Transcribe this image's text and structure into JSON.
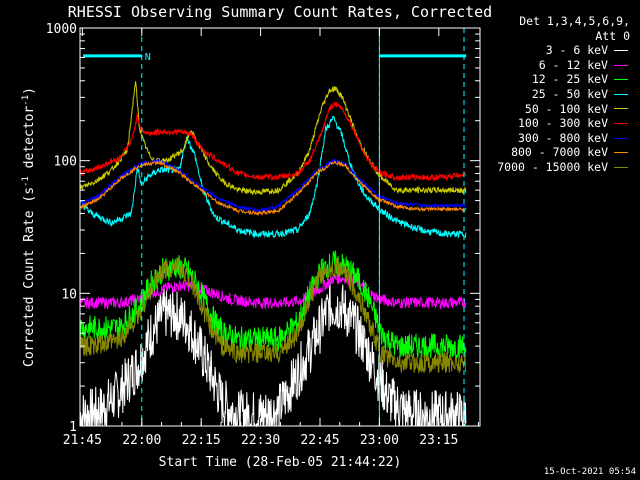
{
  "chart_data": {
    "type": "line",
    "title": "RHESSI Observing Summary Count Rates, Corrected",
    "xlabel": "Start Time (28-Feb-05 21:44:22)",
    "ylabel": "Corrected Count Rate (s⁻¹ detector⁻¹)",
    "ylabel_main": "Corrected Count Rate (s",
    "ylabel_sup1": "-1",
    "ylabel_mid": " detector",
    "ylabel_sup2": "-1",
    "ylabel_end": ")",
    "y_scale": "log",
    "ylim": [
      1,
      1000
    ],
    "xlim_minutes": [
      0,
      101
    ],
    "x_ticks": [
      {
        "label": "21:45",
        "min": 0.6
      },
      {
        "label": "22:00",
        "min": 15.6
      },
      {
        "label": "22:15",
        "min": 30.6
      },
      {
        "label": "22:30",
        "min": 45.6
      },
      {
        "label": "22:45",
        "min": 60.6
      },
      {
        "label": "23:00",
        "min": 75.6
      },
      {
        "label": "23:15",
        "min": 90.6
      }
    ],
    "y_ticks": [
      {
        "label": "1000",
        "v": 1000
      },
      {
        "label": "100",
        "v": 100
      },
      {
        "label": "10",
        "v": 10
      },
      {
        "label": "1",
        "v": 1
      }
    ],
    "legend_header": [
      "Det 1,3,4,5,6,9,",
      "Att 0"
    ],
    "series": [
      {
        "name": "3 - 6 keV",
        "color": "#ffffff",
        "x": [
          0,
          5,
          10,
          15,
          18,
          21,
          24,
          27,
          30,
          33,
          36,
          40,
          45,
          50,
          55,
          60,
          63,
          66,
          69,
          72,
          75,
          78,
          82,
          86,
          90,
          95,
          97.5
        ],
        "y": [
          1.2,
          1.3,
          1.8,
          3,
          5,
          7,
          7,
          6,
          4,
          2.5,
          1.5,
          1.2,
          1.2,
          1.3,
          2.5,
          5,
          8,
          8,
          6,
          4,
          2.5,
          1.6,
          1.3,
          1.2,
          1.2,
          1.2,
          1.2
        ]
      },
      {
        "name": "6 - 12 keV",
        "color": "#ff00ff",
        "x": [
          0,
          5,
          10,
          15,
          18,
          22,
          26,
          30,
          34,
          38,
          45,
          52,
          57,
          61,
          64,
          67,
          70,
          73,
          76,
          80,
          86,
          92,
          97.5
        ],
        "y": [
          8.5,
          8.5,
          8.5,
          9,
          10,
          11,
          11.5,
          11,
          10,
          9,
          8.5,
          8.5,
          9,
          11,
          13,
          13,
          12,
          10,
          9,
          8.5,
          8.5,
          8.5,
          8.5
        ]
      },
      {
        "name": "12 - 25 keV",
        "color": "#00ff00",
        "x": [
          0,
          5,
          10,
          15,
          18,
          21,
          24,
          27,
          30,
          33,
          36,
          40,
          45,
          50,
          55,
          58,
          61,
          64,
          67,
          70,
          73,
          76,
          80,
          86,
          92,
          97.5
        ],
        "y": [
          5.5,
          5.5,
          5.5,
          8,
          12,
          15,
          16,
          15,
          11,
          7,
          5,
          4.5,
          4.5,
          4.5,
          6,
          10,
          15,
          17,
          16,
          13,
          9,
          5,
          4,
          4,
          4,
          4
        ]
      },
      {
        "name": "25 - 50 keV",
        "color": "#00ffff",
        "x": [
          0,
          3,
          8,
          13,
          14.5,
          15.5,
          17,
          20,
          25,
          27,
          29,
          31,
          34,
          40,
          45,
          50,
          55,
          58,
          60,
          62,
          64,
          66,
          68,
          70,
          72,
          74,
          76,
          80,
          86,
          92,
          97.5
        ],
        "y": [
          48,
          40,
          34,
          40,
          90,
          65,
          75,
          85,
          85,
          150,
          110,
          60,
          38,
          30,
          28,
          28,
          30,
          40,
          70,
          170,
          210,
          160,
          100,
          70,
          55,
          48,
          42,
          35,
          30,
          28,
          28
        ]
      },
      {
        "name": "50 - 100 keV",
        "color": "#cccc00",
        "x": [
          0,
          4,
          8,
          12,
          14,
          15,
          16,
          17.5,
          19,
          22,
          26,
          28,
          30,
          33,
          36,
          40,
          45,
          50,
          55,
          58,
          61,
          63,
          64.5,
          66,
          68,
          70,
          73,
          76,
          80,
          86,
          92,
          97.5
        ],
        "y": [
          62,
          70,
          85,
          120,
          400,
          180,
          140,
          110,
          100,
          100,
          120,
          170,
          130,
          90,
          70,
          60,
          58,
          60,
          80,
          120,
          250,
          340,
          350,
          310,
          220,
          150,
          100,
          75,
          60,
          60,
          60,
          60
        ]
      },
      {
        "name": "100 - 300 keV",
        "color": "#ff0000",
        "x": [
          0,
          5,
          10,
          13,
          14.5,
          15.5,
          17,
          20,
          25,
          28,
          31,
          35,
          40,
          45,
          50,
          55,
          58,
          61,
          63,
          64.5,
          66,
          68,
          70,
          72,
          74,
          76,
          80,
          86,
          92,
          97.5
        ],
        "y": [
          80,
          90,
          105,
          140,
          220,
          170,
          160,
          165,
          165,
          160,
          120,
          100,
          80,
          75,
          75,
          80,
          100,
          160,
          250,
          270,
          250,
          200,
          150,
          110,
          90,
          80,
          75,
          75,
          75,
          80
        ]
      },
      {
        "name": "300 - 800 keV",
        "color": "#0000ff",
        "x": [
          0,
          5,
          10,
          15,
          20,
          25,
          30,
          35,
          40,
          45,
          50,
          55,
          60,
          64,
          67,
          70,
          75,
          80,
          86,
          92,
          97.5
        ],
        "y": [
          47,
          55,
          75,
          95,
          100,
          85,
          65,
          52,
          45,
          42,
          45,
          60,
          85,
          100,
          95,
          75,
          55,
          48,
          46,
          46,
          46
        ]
      },
      {
        "name": "800 - 7000 keV",
        "color": "#ff8800",
        "x": [
          0,
          5,
          10,
          15,
          20,
          25,
          30,
          35,
          40,
          45,
          50,
          55,
          60,
          64,
          67,
          70,
          75,
          80,
          86,
          92,
          97.5
        ],
        "y": [
          44,
          52,
          72,
          92,
          97,
          82,
          62,
          48,
          42,
          40,
          42,
          56,
          82,
          97,
          92,
          72,
          52,
          45,
          43,
          43,
          43
        ]
      },
      {
        "name": "7000 - 15000 keV",
        "color": "#888800",
        "x": [
          0,
          5,
          10,
          15,
          18,
          21,
          24,
          27,
          30,
          33,
          36,
          40,
          45,
          50,
          55,
          58,
          61,
          64,
          67,
          70,
          73,
          76,
          80,
          86,
          92,
          97.5
        ],
        "y": [
          4,
          4,
          4.5,
          7,
          11,
          15,
          16,
          14,
          9,
          5.5,
          4,
          3.5,
          3.5,
          3.5,
          5,
          9,
          14,
          16,
          14,
          10,
          6,
          3.5,
          3,
          3,
          3,
          3
        ]
      }
    ],
    "attenuator_markers": [
      {
        "x0": 0.8,
        "x1": 15.6,
        "v": 800,
        "label": "N"
      },
      {
        "x0": 75.6,
        "x1": 97.5,
        "v": 800
      }
    ],
    "dashed_vlines": [
      15.6,
      75.6
    ],
    "timestamp": "15-Oct-2021 05:54"
  }
}
